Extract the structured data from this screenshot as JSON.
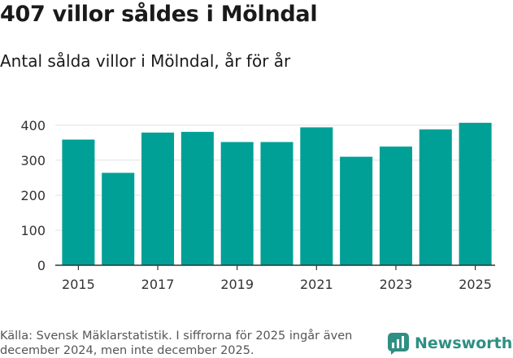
{
  "header": {
    "title": "407 villor såldes i Mölndal",
    "subtitle": "Antal sålda villor i Mölndal, år för år"
  },
  "footer": {
    "source": "Källa: Svensk Mäklarstatistik. I siffrorna för 2025 ingår även december 2024, men inte december 2025.",
    "brand": "Newsworthy",
    "brand_icon": "newsworthy-logo-icon"
  },
  "colors": {
    "bar": "#00a096",
    "grid": "#e0e0e0",
    "axis": "#333333",
    "brand": "#2f8f83"
  },
  "chart_data": {
    "type": "bar",
    "categories": [
      "2015",
      "2016",
      "2017",
      "2018",
      "2019",
      "2020",
      "2021",
      "2022",
      "2023",
      "2024",
      "2025"
    ],
    "values": [
      359,
      264,
      379,
      381,
      352,
      352,
      394,
      310,
      339,
      388,
      407
    ],
    "x_tick_labels": [
      "2015",
      "2017",
      "2019",
      "2021",
      "2023",
      "2025"
    ],
    "y_ticks": [
      0,
      100,
      200,
      300,
      400
    ],
    "ylim": [
      0,
      430
    ],
    "title": "407 villor såldes i Mölndal",
    "xlabel": "",
    "ylabel": "",
    "grid": true
  }
}
